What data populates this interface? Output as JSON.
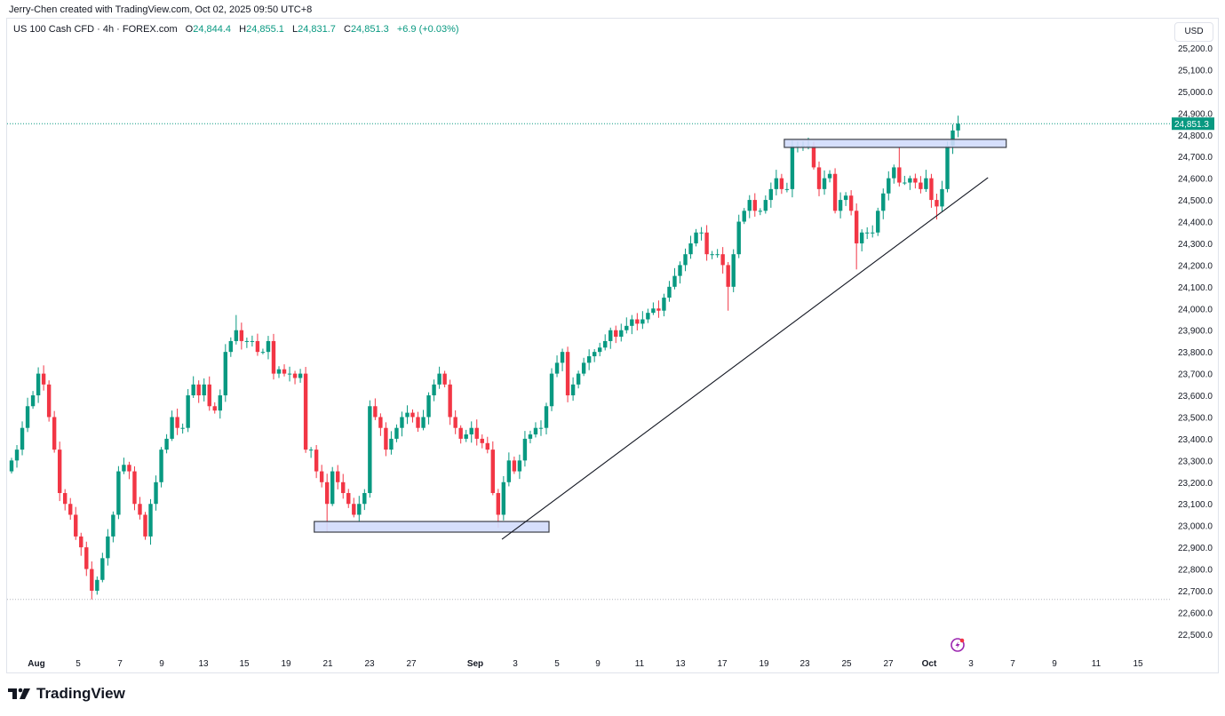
{
  "credit": "Jerry-Chen created with TradingView.com, Oct 02, 2025 09:50 UTC+8",
  "legend": {
    "symbol": "US 100 Cash CFD · 4h · FOREX.com",
    "o_label": "O",
    "o": "24,844.4",
    "h_label": "H",
    "h": "24,855.1",
    "l_label": "L",
    "l": "24,831.7",
    "c_label": "C",
    "c": "24,851.3",
    "change": "+6.9 (+0.03%)"
  },
  "currency": "USD",
  "logo_text": "TradingView",
  "colors": {
    "up": "#089981",
    "down": "#f23645",
    "box_fill": "#d1dcfc",
    "line": "#131722"
  },
  "chart_data": {
    "type": "candlestick",
    "title": "US 100 Cash CFD · 4h · FOREX.com",
    "ylim": [
      22400,
      25300
    ],
    "y_ticks": [
      "25,200.0",
      "25,100.0",
      "25,000.0",
      "24,900.0",
      "24,800.0",
      "24,700.0",
      "24,600.0",
      "24,500.0",
      "24,400.0",
      "24,300.0",
      "24,200.0",
      "24,100.0",
      "24,000.0",
      "23,900.0",
      "23,800.0",
      "23,700.0",
      "23,600.0",
      "23,500.0",
      "23,400.0",
      "23,300.0",
      "23,200.0",
      "23,100.0",
      "23,000.0",
      "22,900.0",
      "22,800.0",
      "22,700.0",
      "22,600.0",
      "22,500.0"
    ],
    "y_tick_values": [
      25200,
      25100,
      25000,
      24900,
      24800,
      24700,
      24600,
      24500,
      24400,
      24300,
      24200,
      24100,
      24000,
      23900,
      23800,
      23700,
      23600,
      23500,
      23400,
      23300,
      23200,
      23100,
      23000,
      22900,
      22800,
      22700,
      22600,
      22500
    ],
    "x_ticks": [
      "Aug",
      "5",
      "7",
      "9",
      "13",
      "15",
      "19",
      "21",
      "23",
      "27",
      "Sep",
      "3",
      "5",
      "9",
      "11",
      "13",
      "17",
      "19",
      "23",
      "25",
      "27",
      "Oct",
      "3",
      "7",
      "9",
      "11",
      "15"
    ],
    "last_price": 24851.3,
    "last_price_label": "24,851.3",
    "period_low": 22660,
    "closes": [
      23300,
      23350,
      23450,
      23550,
      23600,
      23700,
      23650,
      23500,
      23350,
      23150,
      23100,
      23050,
      22950,
      22900,
      22800,
      22700,
      22750,
      22850,
      22950,
      23050,
      23250,
      23280,
      23250,
      23100,
      23050,
      22950,
      23100,
      23200,
      23350,
      23400,
      23500,
      23450,
      23450,
      23600,
      23650,
      23600,
      23650,
      23550,
      23530,
      23600,
      23800,
      23850,
      23900,
      23850,
      23850,
      23850,
      23800,
      23800,
      23850,
      23700,
      23720,
      23700,
      23700,
      23680,
      23700,
      23350,
      23350,
      23250,
      23200,
      23100,
      23250,
      23200,
      23150,
      23100,
      23050,
      23100,
      23150,
      23550,
      23500,
      23450,
      23350,
      23400,
      23450,
      23500,
      23520,
      23500,
      23450,
      23500,
      23600,
      23650,
      23700,
      23650,
      23500,
      23450,
      23400,
      23420,
      23450,
      23400,
      23380,
      23350,
      23150,
      23050,
      23200,
      23300,
      23250,
      23300,
      23400,
      23420,
      23450,
      23450,
      23550,
      23700,
      23750,
      23800,
      23600,
      23650,
      23700,
      23750,
      23780,
      23800,
      23820,
      23850,
      23900,
      23870,
      23900,
      23920,
      23950,
      23930,
      23950,
      23980,
      24000,
      23990,
      24050,
      24100,
      24150,
      24200,
      24250,
      24300,
      24350,
      24350,
      24250,
      24250,
      24250,
      24200,
      24100,
      24250,
      24400,
      24450,
      24500,
      24450,
      24450,
      24500,
      24550,
      24600,
      24550,
      24550,
      24750,
      24750,
      24750,
      24750,
      24650,
      24550,
      24600,
      24620,
      24450,
      24500,
      24520,
      24450,
      24300,
      24350,
      24350,
      24350,
      24450,
      24530,
      24600,
      24650,
      24580,
      24580,
      24600,
      24580,
      24550,
      24600,
      24500,
      24470,
      24550,
      24750,
      24820,
      24851.3
    ],
    "extremes": [
      {
        "index": 15,
        "low": 22660
      },
      {
        "index": 42,
        "high": 23970
      },
      {
        "index": 59,
        "low": 22970
      },
      {
        "index": 91,
        "low": 22990
      },
      {
        "index": 134,
        "low": 23990
      },
      {
        "index": 146,
        "high": 24775
      },
      {
        "index": 148,
        "high": 24770
      },
      {
        "index": 158,
        "low": 24180
      },
      {
        "index": 166,
        "high": 24740
      },
      {
        "index": 173,
        "low": 24410
      }
    ],
    "drawings": {
      "support_box": {
        "from_index": 56.6,
        "to_index": 100.5,
        "price_top": 23019,
        "price_bottom": 22970
      },
      "resistance_box": {
        "from_index": 144.5,
        "to_index": 186,
        "price_top": 24779,
        "price_bottom": 24742
      },
      "trendline": {
        "from_index": 91.7,
        "from_price": 22937,
        "to_index": 182.6,
        "to_price": 24603
      }
    }
  }
}
